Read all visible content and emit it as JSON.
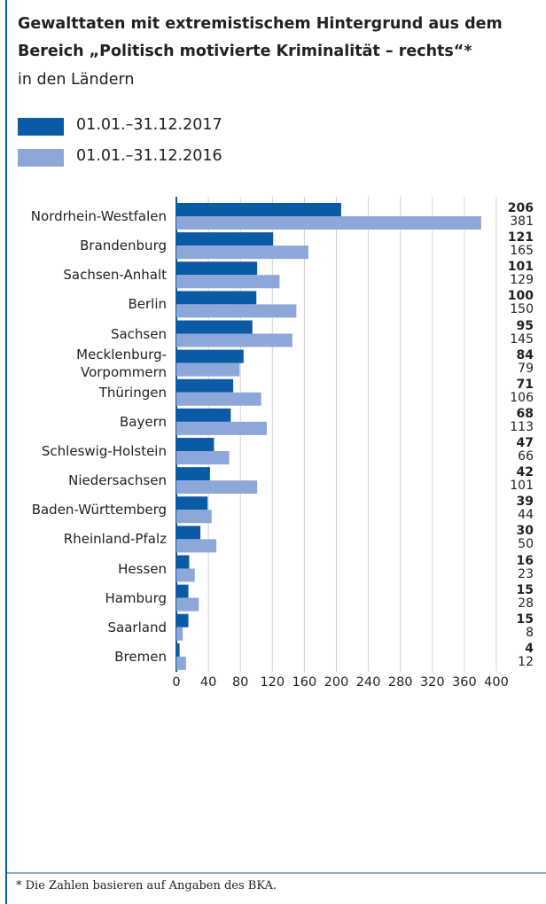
{
  "chart_data": {
    "type": "bar",
    "orientation": "horizontal",
    "title": "Gewalttaten mit extremistischem Hintergrund aus dem Bereich „Politisch motivierte Kriminalität – rechts“*",
    "subtitle": "in den Ländern",
    "categories": [
      "Nordrhein-Westfalen",
      "Brandenburg",
      "Sachsen-Anhalt",
      "Berlin",
      "Sachsen",
      "Mecklenburg-\nVorpommern",
      "Thüringen",
      "Bayern",
      "Schleswig-Holstein",
      "Niedersachsen",
      "Baden-Württemberg",
      "Rheinland-Pfalz",
      "Hessen",
      "Hamburg",
      "Saarland",
      "Bremen"
    ],
    "series": [
      {
        "name": "01.01.–31.12.2017",
        "color": "#0b5aa6",
        "values": [
          206,
          121,
          101,
          100,
          95,
          84,
          71,
          68,
          47,
          42,
          39,
          30,
          16,
          15,
          15,
          4
        ]
      },
      {
        "name": "01.01.–31.12.2016",
        "color": "#8ea7d9",
        "values": [
          381,
          165,
          129,
          150,
          145,
          79,
          106,
          113,
          66,
          101,
          44,
          50,
          23,
          28,
          8,
          12
        ]
      }
    ],
    "xlim": [
      0,
      400
    ],
    "xticks": [
      0,
      40,
      80,
      120,
      160,
      200,
      240,
      280,
      320,
      360,
      400
    ],
    "grid": true,
    "footnote": "* Die Zahlen basieren auf Angaben des BKA."
  }
}
